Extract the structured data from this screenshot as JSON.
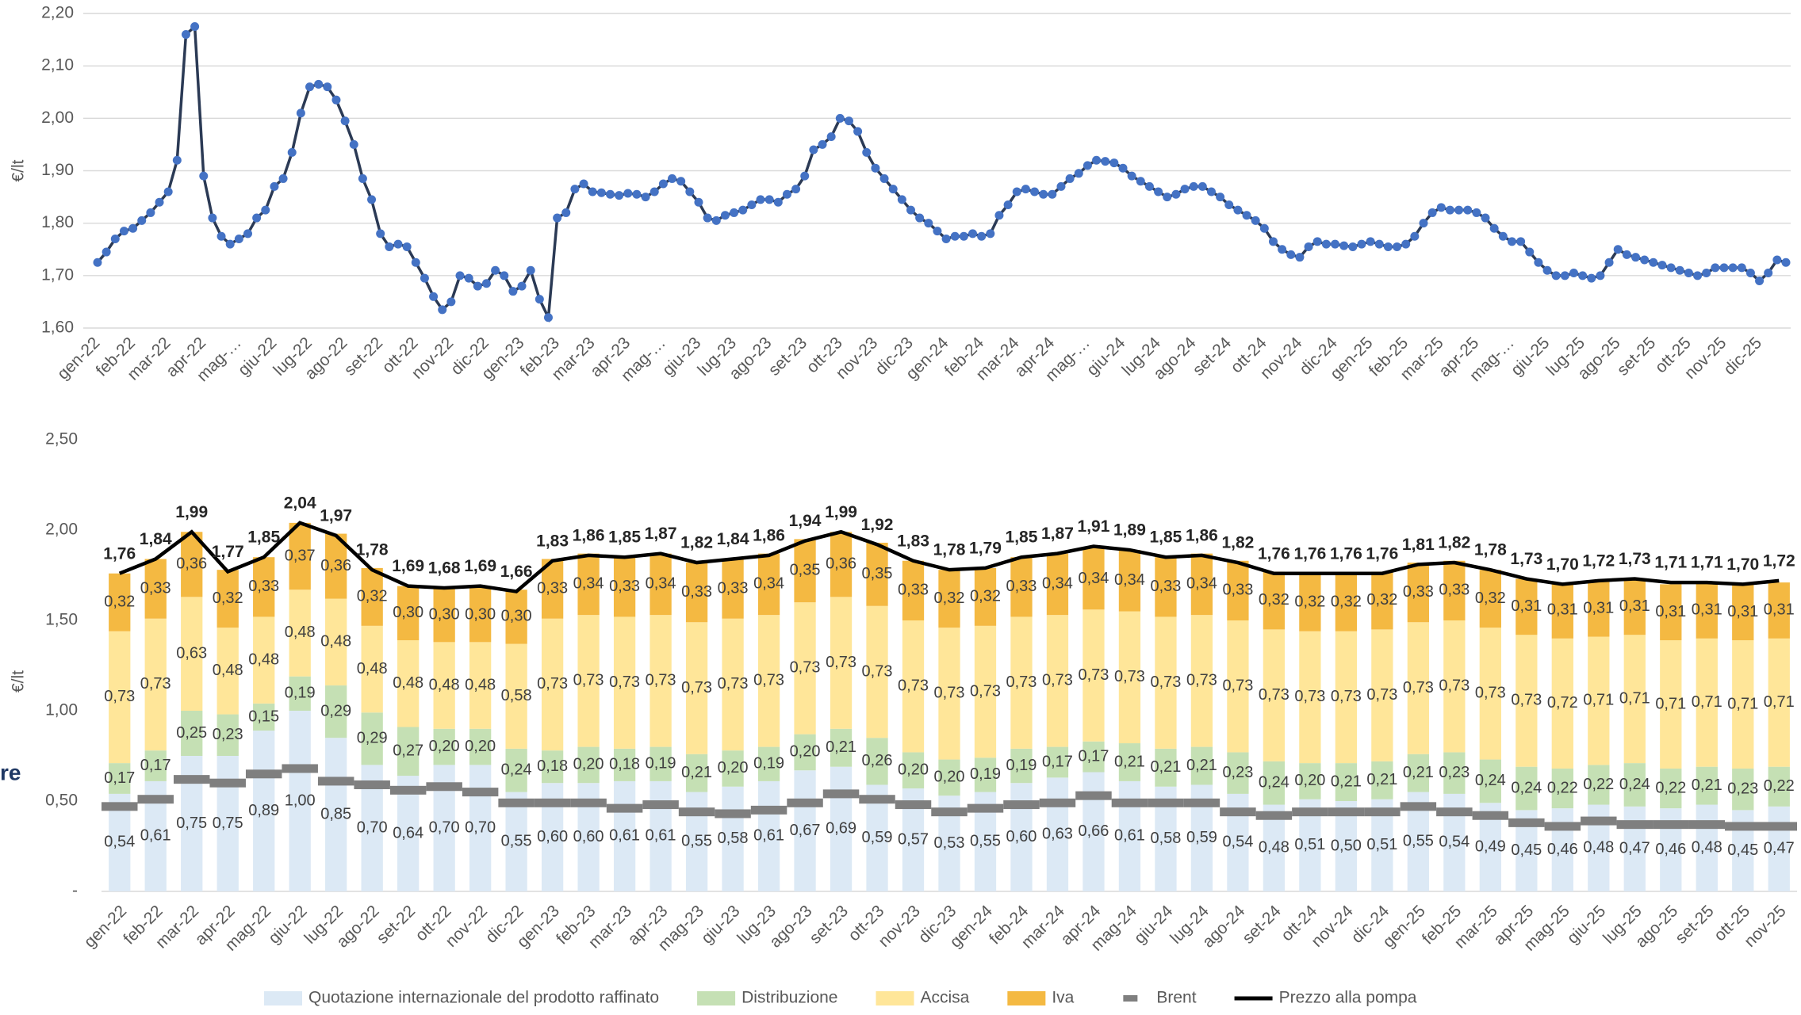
{
  "fragment": "re",
  "chart_data": [
    {
      "type": "line",
      "y_label": "€/lt",
      "color": "#4472c4",
      "line_color": "#2b3a55",
      "grid": true,
      "ylim": [
        1.6,
        2.2
      ],
      "yticks": [
        {
          "value": 1.6,
          "label": "1,60"
        },
        {
          "value": 1.7,
          "label": "1,70"
        },
        {
          "value": 1.8,
          "label": "1,80"
        },
        {
          "value": 1.9,
          "label": "1,90"
        },
        {
          "value": 2.0,
          "label": "2,00"
        },
        {
          "value": 2.1,
          "label": "2,10"
        },
        {
          "value": 2.2,
          "label": "2,20"
        }
      ],
      "categories": [
        "gen-22",
        null,
        null,
        null,
        "feb-22",
        null,
        null,
        null,
        "mar-22",
        null,
        null,
        null,
        "apr-22",
        null,
        null,
        null,
        "mag-…",
        null,
        null,
        null,
        "giu-22",
        null,
        null,
        null,
        "lug-22",
        null,
        null,
        null,
        "ago-22",
        null,
        null,
        null,
        "set-22",
        null,
        null,
        null,
        "ott-22",
        null,
        null,
        null,
        "nov-22",
        null,
        null,
        null,
        "dic-22",
        null,
        null,
        null,
        "gen-23",
        null,
        null,
        null,
        "feb-23",
        null,
        null,
        null,
        "mar-23",
        null,
        null,
        null,
        "apr-23",
        null,
        null,
        null,
        "mag-…",
        null,
        null,
        null,
        "giu-23",
        null,
        null,
        null,
        "lug-23",
        null,
        null,
        null,
        "ago-23",
        null,
        null,
        null,
        "set-23",
        null,
        null,
        null,
        "ott-23",
        null,
        null,
        null,
        "nov-23",
        null,
        null,
        null,
        "dic-23",
        null,
        null,
        null,
        "gen-24",
        null,
        null,
        null,
        "feb-24",
        null,
        null,
        null,
        "mar-24",
        null,
        null,
        null,
        "apr-24",
        null,
        null,
        null,
        "mag-…",
        null,
        null,
        null,
        "giu-24",
        null,
        null,
        null,
        "lug-24",
        null,
        null,
        null,
        "ago-24",
        null,
        null,
        null,
        "set-24",
        null,
        null,
        null,
        "ott-24",
        null,
        null,
        null,
        "nov-24",
        null,
        null,
        null,
        "dic-24",
        null,
        null,
        null,
        "gen-25",
        null,
        null,
        null,
        "feb-25",
        null,
        null,
        null,
        "mar-25",
        null,
        null,
        null,
        "apr-25",
        null,
        null,
        null,
        "mag-…",
        null,
        null,
        null,
        "giu-25",
        null,
        null,
        null,
        "lug-25",
        null,
        null,
        null,
        "ago-25",
        null,
        null,
        null,
        "set-25",
        null,
        null,
        null,
        "ott-25",
        null,
        null,
        null,
        "nov-25",
        null,
        null,
        null,
        "dic-25",
        null,
        null,
        null
      ],
      "values": [
        1.725,
        1.745,
        1.77,
        1.785,
        1.79,
        1.805,
        1.82,
        1.84,
        1.86,
        1.92,
        2.16,
        2.175,
        1.89,
        1.81,
        1.775,
        1.76,
        1.77,
        1.78,
        1.81,
        1.825,
        1.87,
        1.885,
        1.935,
        2.01,
        2.06,
        2.065,
        2.06,
        2.035,
        1.995,
        1.95,
        1.885,
        1.845,
        1.78,
        1.755,
        1.76,
        1.755,
        1.725,
        1.695,
        1.66,
        1.635,
        1.65,
        1.7,
        1.695,
        1.68,
        1.685,
        1.71,
        1.7,
        1.67,
        1.68,
        1.71,
        1.655,
        1.62,
        1.81,
        1.82,
        1.865,
        1.875,
        1.86,
        1.858,
        1.855,
        1.853,
        1.857,
        1.855,
        1.85,
        1.86,
        1.875,
        1.885,
        1.88,
        1.86,
        1.84,
        1.81,
        1.805,
        1.815,
        1.82,
        1.825,
        1.835,
        1.845,
        1.845,
        1.84,
        1.855,
        1.865,
        1.89,
        1.94,
        1.95,
        1.965,
        2.0,
        1.995,
        1.975,
        1.935,
        1.905,
        1.885,
        1.865,
        1.845,
        1.825,
        1.81,
        1.8,
        1.785,
        1.77,
        1.775,
        1.775,
        1.78,
        1.775,
        1.78,
        1.815,
        1.835,
        1.86,
        1.865,
        1.86,
        1.855,
        1.855,
        1.87,
        1.885,
        1.895,
        1.91,
        1.92,
        1.918,
        1.915,
        1.905,
        1.89,
        1.88,
        1.87,
        1.86,
        1.85,
        1.855,
        1.865,
        1.87,
        1.87,
        1.86,
        1.85,
        1.835,
        1.825,
        1.815,
        1.805,
        1.79,
        1.765,
        1.75,
        1.74,
        1.735,
        1.755,
        1.765,
        1.76,
        1.76,
        1.757,
        1.755,
        1.76,
        1.765,
        1.76,
        1.755,
        1.755,
        1.76,
        1.775,
        1.8,
        1.82,
        1.83,
        1.825,
        1.825,
        1.825,
        1.82,
        1.81,
        1.79,
        1.775,
        1.765,
        1.765,
        1.745,
        1.725,
        1.71,
        1.7,
        1.7,
        1.705,
        1.7,
        1.695,
        1.7,
        1.725,
        1.75,
        1.74,
        1.735,
        1.73,
        1.725,
        1.72,
        1.715,
        1.71,
        1.705,
        1.7,
        1.705,
        1.715,
        1.715,
        1.715,
        1.715,
        1.705,
        1.69,
        1.705,
        1.73,
        1.725
      ]
    },
    {
      "type": "bar",
      "stacked": true,
      "y_label": "€/lt",
      "legend": "bottom",
      "ylim": [
        0,
        2.5
      ],
      "yticks": [
        {
          "value": 0,
          "label": "-"
        },
        {
          "value": 0.5,
          "label": "0,50"
        },
        {
          "value": 1.0,
          "label": "1,00"
        },
        {
          "value": 1.5,
          "label": "1,50"
        },
        {
          "value": 2.0,
          "label": "2,00"
        },
        {
          "value": 2.5,
          "label": "2,50"
        }
      ],
      "categories": [
        "gen-22",
        "feb-22",
        "mar-22",
        "apr-22",
        "mag-22",
        "giu-22",
        "lug-22",
        "ago-22",
        "set-22",
        "ott-22",
        "nov-22",
        "dic-22",
        "gen-23",
        "feb-23",
        "mar-23",
        "apr-23",
        "mag-23",
        "giu-23",
        "lug-23",
        "ago-23",
        "set-23",
        "ott-23",
        "nov-23",
        "dic-23",
        "gen-24",
        "feb-24",
        "mar-24",
        "apr-24",
        "mag-24",
        "giu-24",
        "lug-24",
        "ago-24",
        "set-24",
        "ott-24",
        "nov-24",
        "dic-24",
        "gen-25",
        "feb-25",
        "mar-25",
        "apr-25",
        "mag-25",
        "giu-25",
        "lug-25",
        "ago-25",
        "set-25",
        "ott-25",
        "nov-25"
      ],
      "series": [
        {
          "name": "Quotazione internazionale del prodotto raffinato",
          "type": "bar",
          "color": "#dce9f5",
          "values": [
            0.54,
            0.61,
            0.75,
            0.75,
            0.89,
            1.0,
            0.85,
            0.7,
            0.64,
            0.7,
            0.7,
            0.55,
            0.6,
            0.6,
            0.61,
            0.61,
            0.55,
            0.58,
            0.61,
            0.67,
            0.69,
            0.59,
            0.57,
            0.53,
            0.55,
            0.6,
            0.63,
            0.66,
            0.61,
            0.58,
            0.59,
            0.54,
            0.48,
            0.51,
            0.5,
            0.51,
            0.55,
            0.54,
            0.49,
            0.45,
            0.46,
            0.48,
            0.47,
            0.46,
            0.48,
            0.45,
            0.47
          ],
          "value_labels": [
            "0,54",
            "0,61",
            "0,75",
            "0,75",
            "0,89",
            "1,00",
            "0,85",
            "0,70",
            "0,64",
            "0,70",
            "0,70",
            "0,55",
            "0,60",
            "0,60",
            "0,61",
            "0,61",
            "0,55",
            "0,58",
            "0,61",
            "0,67",
            "0,69",
            "0,59",
            "0,57",
            "0,53",
            "0,55",
            "0,60",
            "0,63",
            "0,66",
            "0,61",
            "0,58",
            "0,59",
            "0,54",
            "0,48",
            "0,51",
            "0,50",
            "0,51",
            "0,55",
            "0,54",
            "0,49",
            "0,45",
            "0,46",
            "0,48",
            "0,47",
            "0,46",
            "0,48",
            "0,45",
            "0,47"
          ]
        },
        {
          "name": "Distribuzione",
          "type": "bar",
          "color": "#c5e0b4",
          "values": [
            0.17,
            0.17,
            0.25,
            0.23,
            0.15,
            0.19,
            0.29,
            0.29,
            0.27,
            0.2,
            0.2,
            0.24,
            0.18,
            0.2,
            0.18,
            0.19,
            0.21,
            0.2,
            0.19,
            0.2,
            0.21,
            0.26,
            0.2,
            0.2,
            0.19,
            0.19,
            0.17,
            0.17,
            0.21,
            0.21,
            0.21,
            0.23,
            0.24,
            0.2,
            0.21,
            0.21,
            0.21,
            0.23,
            0.24,
            0.24,
            0.22,
            0.22,
            0.24,
            0.22,
            0.21,
            0.23,
            0.22
          ],
          "value_labels": [
            "0,17",
            "0,17",
            "0,25",
            "0,23",
            "0,15",
            "0,19",
            "0,29",
            "0,29",
            "0,27",
            "0,20",
            "0,20",
            "0,24",
            "0,18",
            "0,20",
            "0,18",
            "0,19",
            "0,21",
            "0,20",
            "0,19",
            "0,20",
            "0,21",
            "0,26",
            "0,20",
            "0,20",
            "0,19",
            "0,19",
            "0,17",
            "0,17",
            "0,21",
            "0,21",
            "0,21",
            "0,23",
            "0,24",
            "0,20",
            "0,21",
            "0,21",
            "0,21",
            "0,23",
            "0,24",
            "0,24",
            "0,22",
            "0,22",
            "0,24",
            "0,22",
            "0,21",
            "0,23",
            "0,22"
          ]
        },
        {
          "name": "Accisa",
          "type": "bar",
          "color": "#ffe699",
          "values": [
            0.73,
            0.73,
            0.63,
            0.48,
            0.48,
            0.48,
            0.48,
            0.48,
            0.48,
            0.48,
            0.48,
            0.58,
            0.73,
            0.73,
            0.73,
            0.73,
            0.73,
            0.73,
            0.73,
            0.73,
            0.73,
            0.73,
            0.73,
            0.73,
            0.73,
            0.73,
            0.73,
            0.73,
            0.73,
            0.73,
            0.73,
            0.73,
            0.73,
            0.73,
            0.73,
            0.73,
            0.73,
            0.73,
            0.73,
            0.73,
            0.72,
            0.71,
            0.71,
            0.71,
            0.71,
            0.71,
            0.71
          ],
          "value_labels": [
            "0,73",
            "0,73",
            "0,63",
            "0,48",
            "0,48",
            "0,48",
            "0,48",
            "0,48",
            "0,48",
            "0,48",
            "0,48",
            "0,58",
            "0,73",
            "0,73",
            "0,73",
            "0,73",
            "0,73",
            "0,73",
            "0,73",
            "0,73",
            "0,73",
            "0,73",
            "0,73",
            "0,73",
            "0,73",
            "0,73",
            "0,73",
            "0,73",
            "0,73",
            "0,73",
            "0,73",
            "0,73",
            "0,73",
            "0,73",
            "0,73",
            "0,73",
            "0,73",
            "0,73",
            "0,73",
            "0,73",
            "0,72",
            "0,71",
            "0,71",
            "0,71",
            "0,71",
            "0,71",
            "0,71"
          ]
        },
        {
          "name": "Iva",
          "type": "bar",
          "color": "#f4b942",
          "values": [
            0.32,
            0.33,
            0.36,
            0.32,
            0.33,
            0.37,
            0.36,
            0.32,
            0.3,
            0.3,
            0.3,
            0.3,
            0.33,
            0.34,
            0.33,
            0.34,
            0.33,
            0.33,
            0.34,
            0.35,
            0.36,
            0.35,
            0.33,
            0.32,
            0.32,
            0.33,
            0.34,
            0.34,
            0.34,
            0.33,
            0.34,
            0.33,
            0.32,
            0.32,
            0.32,
            0.32,
            0.33,
            0.33,
            0.32,
            0.31,
            0.31,
            0.31,
            0.31,
            0.31,
            0.31,
            0.31,
            0.31
          ],
          "value_labels": [
            "0,32",
            "0,33",
            "0,36",
            "0,32",
            "0,33",
            "0,37",
            "0,36",
            "0,32",
            "0,30",
            "0,30",
            "0,30",
            "0,30",
            "0,33",
            "0,34",
            "0,33",
            "0,34",
            "0,33",
            "0,33",
            "0,34",
            "0,35",
            "0,36",
            "0,35",
            "0,33",
            "0,32",
            "0,32",
            "0,33",
            "0,34",
            "0,34",
            "0,34",
            "0,33",
            "0,34",
            "0,33",
            "0,32",
            "0,32",
            "0,32",
            "0,32",
            "0,33",
            "0,33",
            "0,32",
            "0,31",
            "0,31",
            "0,31",
            "0,31",
            "0,31",
            "0,31",
            "0,31",
            "0,31"
          ]
        },
        {
          "name": "Brent",
          "type": "marker",
          "color": "#7f7f7f",
          "values": [
            0.47,
            0.51,
            0.62,
            0.6,
            0.65,
            0.68,
            0.61,
            0.59,
            0.56,
            0.58,
            0.55,
            0.49,
            0.49,
            0.49,
            0.46,
            0.48,
            0.44,
            0.43,
            0.45,
            0.49,
            0.54,
            0.51,
            0.48,
            0.44,
            0.46,
            0.48,
            0.49,
            0.53,
            0.49,
            0.49,
            0.49,
            0.44,
            0.42,
            0.44,
            0.44,
            0.44,
            0.47,
            0.44,
            0.42,
            0.38,
            0.36,
            0.39,
            0.37,
            0.37,
            0.37,
            0.36,
            0.36
          ]
        },
        {
          "name": "Prezzo alla pompa",
          "type": "line",
          "color": "#000000",
          "values": [
            1.76,
            1.84,
            1.99,
            1.77,
            1.85,
            2.04,
            1.97,
            1.78,
            1.69,
            1.68,
            1.69,
            1.66,
            1.83,
            1.86,
            1.85,
            1.87,
            1.82,
            1.84,
            1.86,
            1.94,
            1.99,
            1.92,
            1.83,
            1.78,
            1.79,
            1.85,
            1.87,
            1.91,
            1.89,
            1.85,
            1.86,
            1.82,
            1.76,
            1.76,
            1.76,
            1.76,
            1.81,
            1.82,
            1.78,
            1.73,
            1.7,
            1.72,
            1.73,
            1.71,
            1.71,
            1.7,
            1.72
          ],
          "value_labels": [
            "1,76",
            "1,84",
            "1,99",
            "1,77",
            "1,85",
            "2,04",
            "1,97",
            "1,78",
            "1,69",
            "1,68",
            "1,69",
            "1,66",
            "1,83",
            "1,86",
            "1,85",
            "1,87",
            "1,82",
            "1,84",
            "1,86",
            "1,94",
            "1,99",
            "1,92",
            "1,83",
            "1,78",
            "1,79",
            "1,85",
            "1,87",
            "1,91",
            "1,89",
            "1,85",
            "1,86",
            "1,82",
            "1,76",
            "1,76",
            "1,76",
            "1,76",
            "1,81",
            "1,82",
            "1,78",
            "1,73",
            "1,70",
            "1,72",
            "1,73",
            "1,71",
            "1,71",
            "1,70",
            "1,72"
          ]
        }
      ]
    }
  ]
}
